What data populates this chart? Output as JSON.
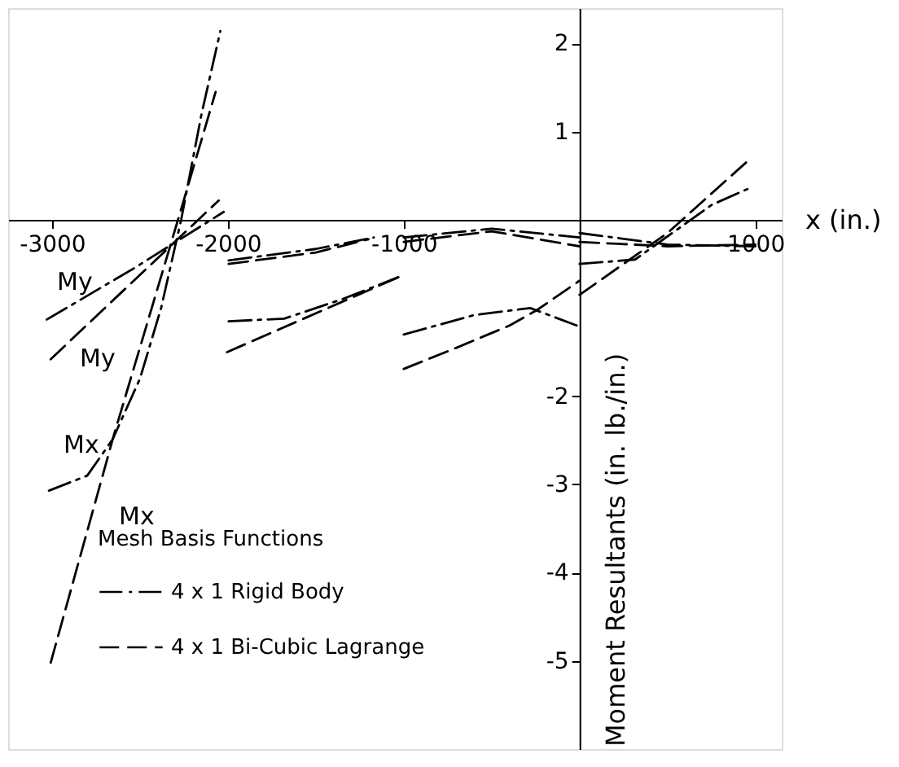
{
  "chart_data": {
    "type": "line",
    "xlabel": "x (in.)",
    "ylabel": "Moment Resultants (in. lb./in.)",
    "legend_title": "Mesh   Basis Functions",
    "legend": "bottom left",
    "xlim": [
      -3250,
      1150
    ],
    "ylim": [
      -6.0,
      2.4
    ],
    "xticks": [
      -3000,
      -2000,
      -1000,
      1000
    ],
    "yticks": [
      2,
      1,
      -2,
      -3,
      -4,
      -5
    ],
    "grid": false,
    "marker": "none",
    "series": [
      {
        "name": "4 x 1   Rigid Body",
        "color": "#000000",
        "line_style": "dashdot",
        "x": [
          -3030,
          -2535,
          -2024
        ],
        "values": [
          -1.13,
          -0.55,
          0.09
        ]
      },
      {
        "color": "#000000",
        "line_style": "dashdot",
        "x": [
          -3018,
          -2800,
          -2656,
          -2500,
          -2380,
          -2266,
          -2150,
          -2043
        ],
        "values": [
          -3.07,
          -2.9,
          -2.49,
          -1.8,
          -1.0,
          0,
          1.2,
          2.14
        ]
      },
      {
        "color": "#000000",
        "line_style": "dashdot",
        "x": [
          -1996,
          -1500,
          -1170
        ],
        "values": [
          -0.46,
          -0.33,
          -0.2
        ]
      },
      {
        "color": "#000000",
        "line_style": "dashdot",
        "x": [
          -1996,
          -1680,
          -1350,
          -1030
        ],
        "values": [
          -1.15,
          -1.12,
          -0.9,
          -0.65
        ]
      },
      {
        "color": "#000000",
        "line_style": "dashdot",
        "x": [
          -1000,
          -500,
          0
        ],
        "values": [
          -0.2,
          -0.1,
          -0.2
        ]
      },
      {
        "color": "#000000",
        "line_style": "dashdot",
        "x": [
          -1000,
          -600,
          -280,
          0
        ],
        "values": [
          -1.3,
          -1.08,
          -1.0,
          -1.21
        ]
      },
      {
        "color": "#000000",
        "line_style": "dashdot",
        "x": [
          0,
          500,
          1000
        ],
        "values": [
          -0.15,
          -0.28,
          -0.3
        ]
      },
      {
        "color": "#000000",
        "line_style": "dashdot",
        "x": [
          0,
          316,
          752,
          956
        ],
        "values": [
          -0.5,
          -0.45,
          0.17,
          0.35
        ]
      },
      {
        "name": "4 x 1   Bi-Cubic Lagrange",
        "color": "#000000",
        "line_style": "dashed",
        "x": [
          -3008,
          -2052
        ],
        "values": [
          -1.58,
          0.22
        ]
      },
      {
        "color": "#000000",
        "line_style": "dashed",
        "x": [
          -3008,
          -2650,
          -2284,
          -2070
        ],
        "values": [
          -5.02,
          -2.45,
          0,
          1.45
        ]
      },
      {
        "color": "#000000",
        "line_style": "dashed",
        "x": [
          -1996,
          -1500,
          -1200
        ],
        "values": [
          -0.5,
          -0.37,
          -0.22
        ]
      },
      {
        "color": "#000000",
        "line_style": "dashed",
        "x": [
          -2005,
          -1030
        ],
        "values": [
          -1.5,
          -0.65
        ]
      },
      {
        "color": "#000000",
        "line_style": "dashed",
        "x": [
          -1000,
          -500,
          0
        ],
        "values": [
          -0.25,
          -0.13,
          -0.3
        ]
      },
      {
        "color": "#000000",
        "line_style": "dashed",
        "x": [
          -1000,
          -700,
          -400,
          -240,
          0
        ],
        "values": [
          -1.69,
          -1.45,
          -1.2,
          -1.02,
          -0.69
        ]
      },
      {
        "color": "#000000",
        "line_style": "dashed",
        "x": [
          0,
          500,
          1000
        ],
        "values": [
          -0.25,
          -0.3,
          -0.28
        ]
      },
      {
        "color": "#000000",
        "line_style": "dashed",
        "x": [
          0,
          500,
          947
        ],
        "values": [
          -0.85,
          -0.15,
          0.65
        ]
      }
    ],
    "annotations": [
      "My",
      "My",
      "Mx",
      "Mx"
    ]
  }
}
